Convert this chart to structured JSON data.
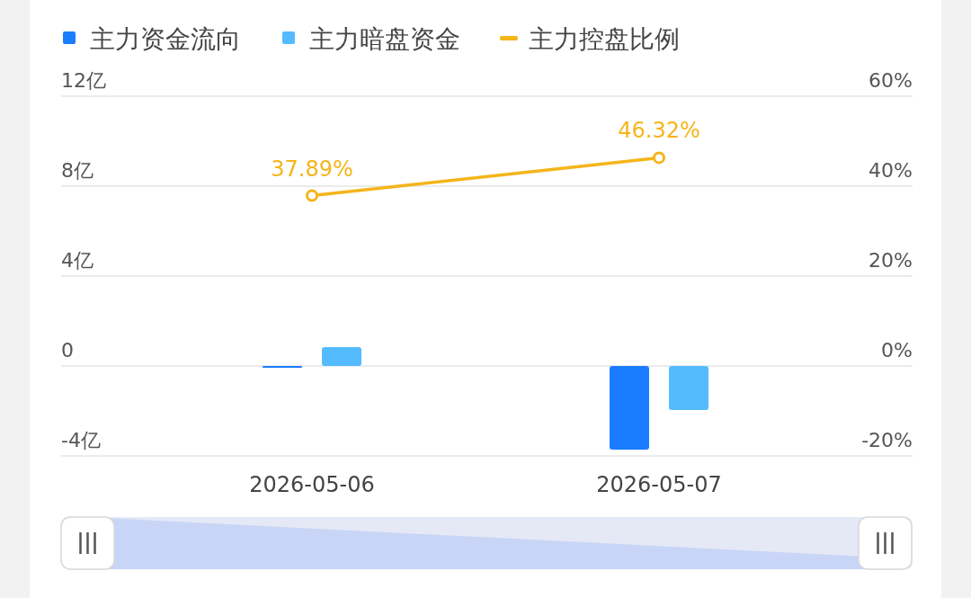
{
  "chart_data": {
    "type": "bar",
    "categories": [
      "2026-05-06",
      "2026-05-07"
    ],
    "series": [
      {
        "name": "主力资金流向",
        "color": "#1a7dff",
        "values": [
          -0.08,
          -3.72
        ]
      },
      {
        "name": "主力暗盘资金",
        "color": "#55bbff",
        "values": [
          0.84,
          -1.96
        ]
      },
      {
        "name": "主力控盘比例",
        "type": "line",
        "axis": "y2",
        "color": "#f5b519",
        "values": [
          37.89,
          46.32
        ],
        "value_labels": [
          "37.89%",
          "46.32%"
        ]
      }
    ],
    "ylim": [
      -4,
      12
    ],
    "yticks": [
      {
        "value": -4,
        "label": "-4亿"
      },
      0,
      {
        "value": 4,
        "label": "4亿"
      },
      {
        "value": 8,
        "label": "8亿"
      },
      {
        "value": 12,
        "label": "12亿"
      }
    ],
    "y2lim": [
      -20,
      60
    ],
    "y2ticks": [
      {
        "value": -20,
        "label": "-20%"
      },
      {
        "value": 0,
        "label": "0%"
      },
      {
        "value": 20,
        "label": "20%"
      },
      {
        "value": 40,
        "label": "40%"
      },
      {
        "value": 60,
        "label": "60%"
      }
    ],
    "grid": "y",
    "legend": "top",
    "marker": "circle"
  }
}
